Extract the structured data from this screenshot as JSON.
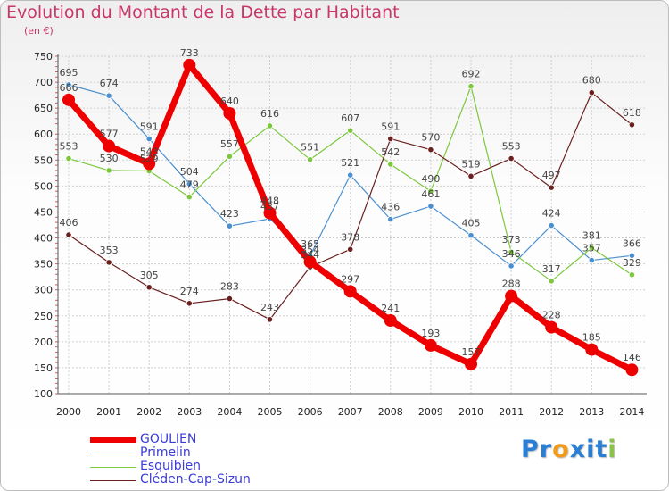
{
  "chart_data": {
    "type": "line",
    "title": "Evolution du Montant de la Dette par Habitant",
    "unit_label": "(en €)",
    "categories": [
      "2000",
      "2001",
      "2002",
      "2003",
      "2004",
      "2005",
      "2006",
      "2007",
      "2008",
      "2009",
      "2010",
      "2011",
      "2012",
      "2013",
      "2014"
    ],
    "ylim": [
      100,
      750
    ],
    "yticks": [
      100,
      150,
      200,
      250,
      300,
      350,
      400,
      450,
      500,
      550,
      600,
      650,
      700,
      750
    ],
    "grid": true,
    "legend_position": "bottom-left",
    "series": [
      {
        "name": "GOULIEN",
        "color": "#ee0000",
        "values": [
          666,
          577,
          543,
          733,
          640,
          448,
          354,
          297,
          241,
          193,
          157,
          288,
          228,
          185,
          146
        ]
      },
      {
        "name": "Primelin",
        "color": "#4a90d0",
        "values": [
          695,
          674,
          591,
          504,
          423,
          437,
          365,
          521,
          436,
          461,
          405,
          346,
          424,
          357,
          366
        ]
      },
      {
        "name": "Esquibien",
        "color": "#7cc83c",
        "values": [
          553,
          530,
          529,
          479,
          557,
          616,
          551,
          607,
          542,
          490,
          692,
          373,
          317,
          381,
          329
        ]
      },
      {
        "name": "Cléden-Cap-Sizun",
        "color": "#6b1f1f",
        "values": [
          406,
          353,
          305,
          274,
          283,
          243,
          344,
          378,
          591,
          570,
          519,
          553,
          497,
          680,
          618
        ]
      }
    ]
  },
  "logo": {
    "letters": [
      "P",
      "r",
      "o",
      "x",
      "i",
      "t",
      "i"
    ],
    "colors": [
      "#2a7fd4",
      "#2a7fd4",
      "#f39a1b",
      "#2a7fd4",
      "#2a7fd4",
      "#2a7fd4",
      "#8bc34a"
    ]
  }
}
